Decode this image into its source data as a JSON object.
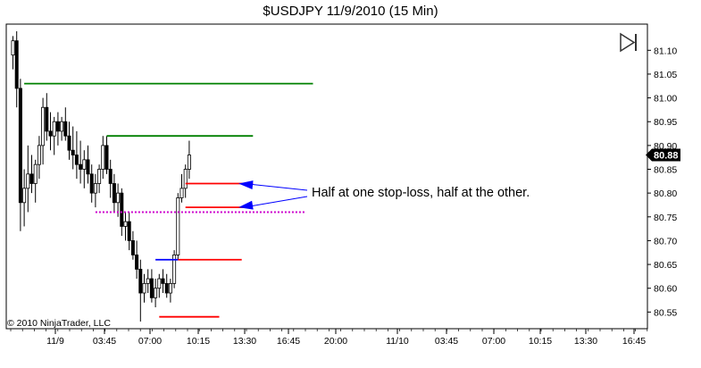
{
  "chart_data": {
    "type": "candlestick",
    "title": "$USDJPY  11/9/2010 (15 Min)",
    "copyright": "© 2010 NinjaTrader, LLC",
    "annotation": "Half at one stop-loss, half at the other.",
    "last_price_label": "80.88",
    "y_ticks": [
      "81.10",
      "81.05",
      "81.00",
      "80.95",
      "80.90",
      "80.85",
      "80.80",
      "80.75",
      "80.70",
      "80.65",
      "80.60",
      "80.55"
    ],
    "x_ticks": [
      "11/9",
      "03:45",
      "07:00",
      "10:15",
      "13:30",
      "16:45",
      "20:00",
      "11/10",
      "03:45",
      "07:00",
      "10:15",
      "13:30",
      "16:45"
    ],
    "ylim": [
      80.515,
      81.155
    ],
    "candles": [
      [
        81.09,
        81.13,
        81.06,
        81.12
      ],
      [
        81.12,
        81.14,
        80.98,
        81.02
      ],
      [
        81.02,
        81.04,
        80.72,
        80.78
      ],
      [
        80.78,
        80.85,
        80.73,
        80.81
      ],
      [
        80.81,
        80.9,
        80.76,
        80.84
      ],
      [
        80.84,
        80.88,
        80.8,
        80.82
      ],
      [
        80.82,
        80.87,
        80.78,
        80.86
      ],
      [
        80.86,
        80.92,
        80.83,
        80.9
      ],
      [
        80.9,
        81.0,
        80.86,
        80.98
      ],
      [
        80.98,
        81.01,
        80.91,
        80.93
      ],
      [
        80.93,
        80.97,
        80.89,
        80.92
      ],
      [
        80.92,
        80.96,
        80.88,
        80.95
      ],
      [
        80.95,
        80.97,
        80.9,
        80.93
      ],
      [
        80.93,
        80.96,
        80.91,
        80.95
      ],
      [
        80.95,
        80.98,
        80.91,
        80.92
      ],
      [
        80.92,
        80.95,
        80.87,
        80.89
      ],
      [
        80.89,
        80.94,
        80.85,
        80.88
      ],
      [
        80.88,
        80.93,
        80.83,
        80.86
      ],
      [
        80.86,
        80.91,
        80.82,
        80.85
      ],
      [
        80.85,
        80.89,
        80.81,
        80.87
      ],
      [
        80.87,
        80.9,
        80.82,
        80.84
      ],
      [
        80.84,
        80.86,
        80.78,
        80.8
      ],
      [
        80.8,
        80.84,
        80.77,
        80.82
      ],
      [
        80.82,
        80.86,
        80.8,
        80.85
      ],
      [
        80.85,
        80.92,
        80.83,
        80.9
      ],
      [
        80.9,
        80.92,
        80.84,
        80.85
      ],
      [
        80.85,
        80.87,
        80.79,
        80.82
      ],
      [
        80.82,
        80.84,
        80.76,
        80.78
      ],
      [
        80.78,
        80.82,
        80.75,
        80.8
      ],
      [
        80.8,
        80.81,
        80.71,
        80.73
      ],
      [
        80.73,
        80.76,
        80.7,
        80.74
      ],
      [
        80.74,
        80.76,
        80.68,
        80.7
      ],
      [
        80.7,
        80.72,
        80.66,
        80.67
      ],
      [
        80.67,
        80.7,
        80.62,
        80.64
      ],
      [
        80.64,
        80.66,
        80.53,
        80.59
      ],
      [
        80.59,
        80.63,
        80.57,
        80.61
      ],
      [
        80.61,
        80.64,
        80.59,
        80.62
      ],
      [
        80.62,
        80.64,
        80.57,
        80.58
      ],
      [
        80.58,
        80.62,
        80.56,
        80.6
      ],
      [
        80.6,
        80.63,
        80.58,
        80.62
      ],
      [
        80.62,
        80.64,
        80.59,
        80.61
      ],
      [
        80.61,
        80.63,
        80.58,
        80.59
      ],
      [
        80.59,
        80.62,
        80.57,
        80.61
      ],
      [
        80.61,
        80.68,
        80.6,
        80.67
      ],
      [
        80.67,
        80.8,
        80.66,
        80.79
      ],
      [
        80.79,
        80.84,
        80.78,
        80.81
      ],
      [
        80.81,
        80.86,
        80.79,
        80.85
      ],
      [
        80.85,
        80.91,
        80.83,
        80.88
      ]
    ],
    "levels": [
      {
        "name": "green-level-upper",
        "price": 81.03,
        "from_bar": 3,
        "to_bar": 80,
        "color": "#008000",
        "style": "solid"
      },
      {
        "name": "green-level-lower",
        "price": 80.92,
        "from_bar": 25,
        "to_bar": 64,
        "color": "#008000",
        "style": "solid"
      },
      {
        "name": "magenta-dotted-level",
        "price": 80.76,
        "from_bar": 22,
        "to_bar": 78,
        "color": "#cc00cc",
        "style": "dotted"
      },
      {
        "name": "red-stop-upper",
        "price": 80.82,
        "from_bar": 46,
        "to_bar": 64,
        "color": "#ff0000",
        "style": "solid"
      },
      {
        "name": "red-stop-middle",
        "price": 80.77,
        "from_bar": 46,
        "to_bar": 63,
        "color": "#ff0000",
        "style": "solid"
      },
      {
        "name": "red-stop-lower",
        "price": 80.66,
        "from_bar": 44,
        "to_bar": 61,
        "color": "#ff0000",
        "style": "solid"
      },
      {
        "name": "blue-entry-level",
        "price": 80.66,
        "from_bar": 38,
        "to_bar": 44,
        "color": "#0000ff",
        "style": "solid"
      },
      {
        "name": "red-stop-bottom",
        "price": 80.54,
        "from_bar": 39,
        "to_bar": 55,
        "color": "#ff0000",
        "style": "solid"
      }
    ],
    "arrows": [
      {
        "name": "arrow-upper",
        "target_bar": 58,
        "target_price": 80.82,
        "color": "#0000ff"
      },
      {
        "name": "arrow-lower",
        "target_bar": 58,
        "target_price": 80.77,
        "color": "#0000ff"
      }
    ],
    "colors": {
      "up_fill": "#ffffff",
      "down_fill": "#000000",
      "wick": "#000000",
      "frame": "#000000",
      "last_price_box": "#000000"
    }
  }
}
